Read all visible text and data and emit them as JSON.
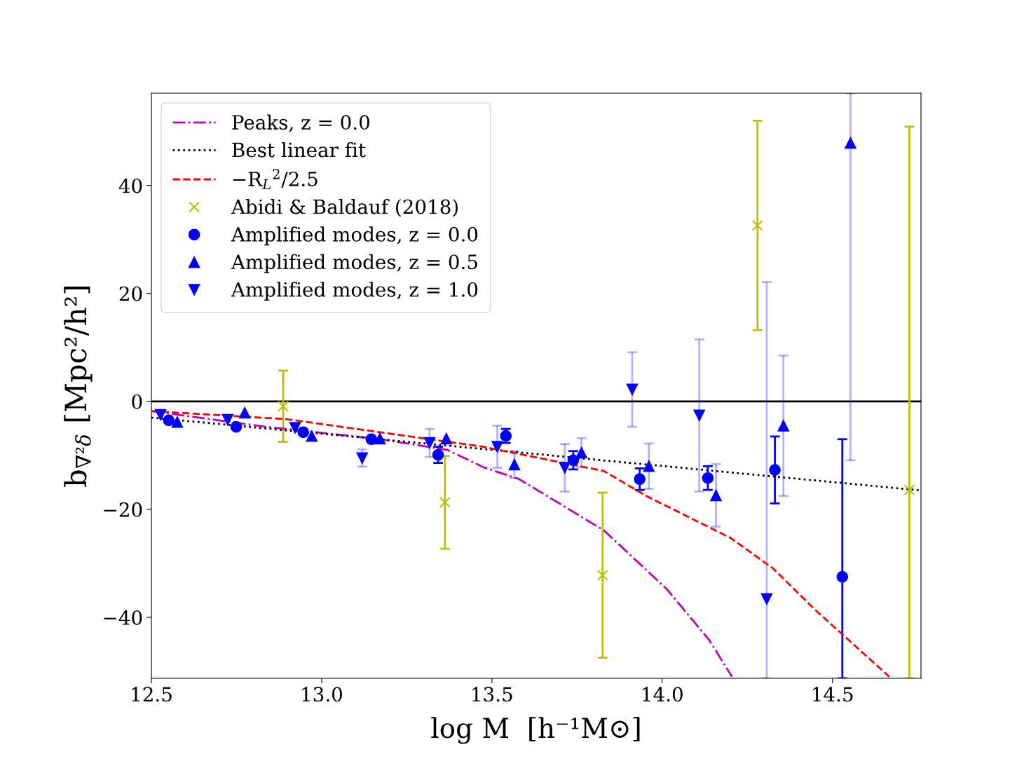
{
  "chart_data": {
    "type": "scatter",
    "xlabel": "log M  [h⁻¹M⊙]",
    "ylabel": "b$_{∇²δ}$ [Mpc²/h²]",
    "xlim": [
      12.5,
      14.76
    ],
    "ylim": [
      -51.3,
      57.1
    ],
    "xticks": [
      12.5,
      {
        "value": 13.0,
        "label": "13.0"
      },
      13.5,
      {
        "value": 14.0,
        "label": "14.0"
      },
      14.5
    ],
    "yticks": [
      -40,
      -20,
      0,
      20,
      40
    ],
    "grid": false,
    "legend": "top left",
    "ref_lines": [
      {
        "axis": "y",
        "value": 0,
        "color": "#000000",
        "line_style": "solid"
      }
    ],
    "series": [
      {
        "name": "Peaks, z = 0.0",
        "type": "line",
        "color": "#bf00bf",
        "line_style": "dashdot",
        "marker": "none",
        "x": [
          12.5,
          12.837,
          13.173,
          13.37,
          13.475,
          13.58,
          13.829,
          14.014,
          14.138,
          14.205
        ],
        "values": [
          -1.8,
          -4.7,
          -7.0,
          -9.0,
          -12.2,
          -14.4,
          -23.9,
          -34.8,
          -44.2,
          -51.0
        ]
      },
      {
        "name": "Best linear fit",
        "type": "line",
        "color": "#000000",
        "line_style": "dotted",
        "marker": "none",
        "x": [
          12.5,
          14.76
        ],
        "values": [
          -3.0,
          -16.5
        ]
      },
      {
        "name": "−R$_{L}$$^{2}$/2.5",
        "type": "line",
        "color": "#ff0000",
        "line_style": "dashed",
        "marker": "none",
        "x": [
          12.5,
          12.899,
          13.475,
          13.829,
          13.953,
          14.201,
          14.325,
          14.449,
          14.667
        ],
        "values": [
          -1.8,
          -3.3,
          -8.4,
          -12.9,
          -17.5,
          -25.3,
          -30.9,
          -38.6,
          -51.0
        ]
      },
      {
        "name": "Abidi & Baldauf (2018)",
        "color": "#bfbf00",
        "marker": "cross",
        "x": [
          12.887,
          13.362,
          13.825,
          14.28,
          14.726
        ],
        "values": [
          -0.9,
          -18.7,
          -32.2,
          32.6,
          -16.4
        ],
        "errors": [
          6.6,
          8.6,
          15.3,
          19.4,
          [
            -51.3,
            50.9
          ]
        ]
      },
      {
        "name": "Amplified modes, z = 0.0",
        "color": "#0000ff",
        "marker": "circle",
        "x": [
          12.551,
          12.749,
          12.946,
          13.146,
          13.342,
          13.541,
          13.739,
          13.934,
          14.134,
          14.331,
          14.529
        ],
        "values": [
          -3.5,
          -4.7,
          -5.7,
          -7.0,
          -9.9,
          -6.4,
          -10.9,
          -14.4,
          -14.2,
          -12.7,
          -32.5
        ],
        "errors": [
          null,
          null,
          null,
          null,
          1.5,
          1.3,
          1.7,
          2.0,
          2.2,
          6.2,
          [
            -51.3,
            -7.0
          ]
        ]
      },
      {
        "name": "Amplified modes, z = 0.5",
        "color": "#0000ff",
        "marker": "triangle",
        "x": [
          12.576,
          12.774,
          12.971,
          13.171,
          13.366,
          13.566,
          13.763,
          13.961,
          14.158,
          14.356,
          14.553
        ],
        "values": [
          -3.8,
          -2.1,
          -6.4,
          -6.9,
          -6.9,
          -11.7,
          -9.5,
          -12.0,
          -17.4,
          -4.5,
          47.9
        ],
        "errors": [
          null,
          null,
          null,
          null,
          null,
          2.5,
          2.7,
          4.2,
          5.8,
          13.0,
          [
            -10.9,
            57.1
          ]
        ]
      },
      {
        "name": "Amplified modes, z = 1.0",
        "color": "#0000ff",
        "marker": "triangle_down",
        "x": [
          12.527,
          12.724,
          12.922,
          13.119,
          13.317,
          13.516,
          13.714,
          13.912,
          14.109,
          14.307
        ],
        "values": [
          -2.5,
          -3.4,
          -4.9,
          -10.5,
          -7.7,
          -8.4,
          -12.3,
          2.2,
          -2.6,
          -36.6
        ],
        "errors": [
          null,
          null,
          null,
          1.6,
          2.6,
          3.9,
          4.4,
          6.9,
          14.1,
          [
            -51.3,
            22.1
          ]
        ]
      }
    ]
  }
}
